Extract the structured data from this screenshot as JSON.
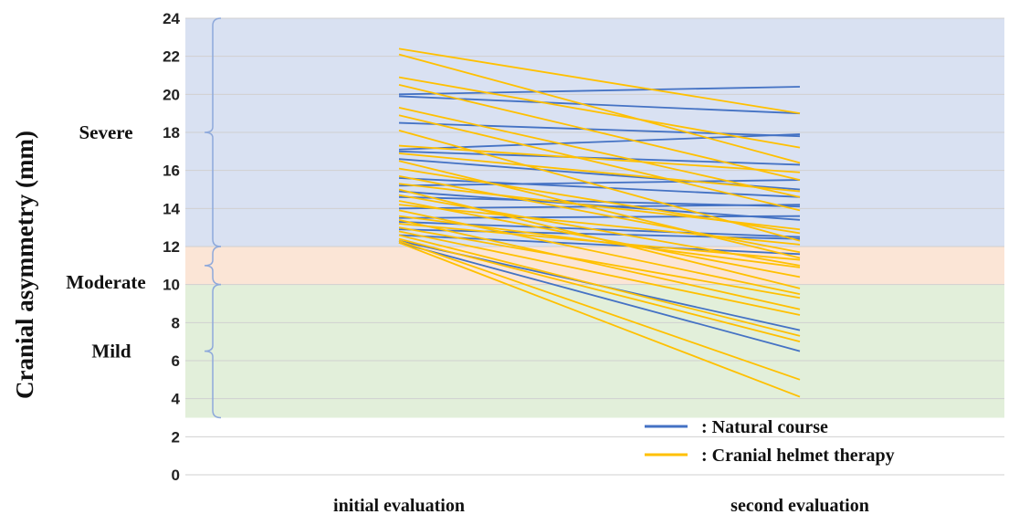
{
  "chart_data": {
    "type": "line",
    "ylabel": "Cranial asymmetry (mm)",
    "xlabel": "",
    "ylim": [
      0,
      24
    ],
    "y_ticks": [
      "0",
      "2",
      "4",
      "6",
      "8",
      "10",
      "12",
      "14",
      "16",
      "18",
      "20",
      "22",
      "24"
    ],
    "categories": [
      "initial evaluation",
      "second evaluation"
    ],
    "grid": true,
    "bands": [
      {
        "label": "Severe",
        "from": 12,
        "to": 24,
        "color": "#d9e1f2"
      },
      {
        "label": "Moderate",
        "from": 10,
        "to": 12,
        "color": "#fbe5d6"
      },
      {
        "label": "Mild",
        "from": 3,
        "to": 10,
        "color": "#e2efda"
      }
    ],
    "series": [
      {
        "name": ": Natural course",
        "color": "#4472c4",
        "lines": [
          [
            20.0,
            20.4
          ],
          [
            19.9,
            19.0
          ],
          [
            18.5,
            17.8
          ],
          [
            17.1,
            17.9
          ],
          [
            17.0,
            16.3
          ],
          [
            16.6,
            15.0
          ],
          [
            15.6,
            14.6
          ],
          [
            15.2,
            15.5
          ],
          [
            14.9,
            13.4
          ],
          [
            14.6,
            14.1
          ],
          [
            14.0,
            14.2
          ],
          [
            13.5,
            13.6
          ],
          [
            13.3,
            12.5
          ],
          [
            12.9,
            12.4
          ],
          [
            12.6,
            11.6
          ],
          [
            12.3,
            7.6
          ],
          [
            12.2,
            6.5
          ]
        ]
      },
      {
        "name": ": Cranial helmet therapy",
        "color": "#ffc000",
        "lines": [
          [
            22.4,
            19.0
          ],
          [
            22.1,
            16.4
          ],
          [
            20.9,
            17.2
          ],
          [
            20.5,
            15.5
          ],
          [
            19.3,
            14.6
          ],
          [
            18.9,
            13.9
          ],
          [
            18.1,
            12.3
          ],
          [
            17.3,
            15.9
          ],
          [
            16.9,
            14.9
          ],
          [
            16.5,
            11.4
          ],
          [
            16.1,
            12.7
          ],
          [
            15.7,
            11.7
          ],
          [
            15.3,
            12.9
          ],
          [
            15.0,
            9.8
          ],
          [
            14.7,
            11.0
          ],
          [
            14.4,
            10.4
          ],
          [
            14.2,
            12.1
          ],
          [
            13.9,
            9.5
          ],
          [
            13.6,
            10.9
          ],
          [
            13.4,
            8.7
          ],
          [
            13.2,
            11.3
          ],
          [
            13.0,
            9.3
          ],
          [
            12.8,
            8.4
          ],
          [
            12.6,
            7.3
          ],
          [
            12.4,
            7.0
          ],
          [
            12.3,
            5.0
          ],
          [
            12.2,
            4.1
          ]
        ]
      }
    ],
    "legend": {
      "placement": "bottom-right",
      "entries": [
        {
          "color": "#4472c4",
          "label": ": Natural course"
        },
        {
          "color": "#ffc000",
          "label": ": Cranial helmet therapy"
        }
      ]
    }
  }
}
